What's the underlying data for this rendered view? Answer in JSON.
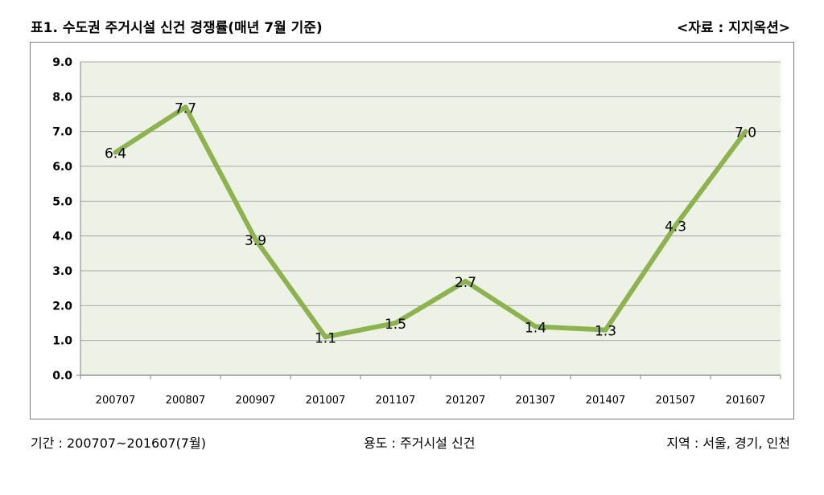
{
  "header": {
    "title": "표1. 수도권 주거시설 신건 경쟁률(매년 7월 기준)",
    "source": "<자료 : 지지옥션>"
  },
  "footer": {
    "period": "기간 : 200707~201607(7월)",
    "usage": "용도 : 주거시설 신건",
    "region": "지역 : 서울, 경기, 인천"
  },
  "colors": {
    "line": "#8db350",
    "plot_background": "#eef1e5",
    "gridline": "#a6a6a6"
  },
  "chart_data": {
    "type": "line",
    "title": "표1. 수도권 주거시설 신건 경쟁률(매년 7월 기준)",
    "categories": [
      "200707",
      "200807",
      "200907",
      "201007",
      "201107",
      "201207",
      "201307",
      "201407",
      "201507",
      "201607"
    ],
    "series": [
      {
        "values": [
          6.4,
          7.7,
          3.9,
          1.1,
          1.5,
          2.7,
          1.4,
          1.3,
          4.3,
          7.0
        ]
      }
    ],
    "data_labels": [
      "6.4",
      "7.7",
      "3.9",
      "1.1",
      "1.5",
      "2.7",
      "1.4",
      "1.3",
      "4.3",
      "7.0"
    ],
    "y_ticks": [
      "0.0",
      "1.0",
      "2.0",
      "3.0",
      "4.0",
      "5.0",
      "6.0",
      "7.0",
      "8.0",
      "9.0"
    ],
    "ylim": [
      0,
      9
    ],
    "grid": true,
    "legend": "none"
  }
}
